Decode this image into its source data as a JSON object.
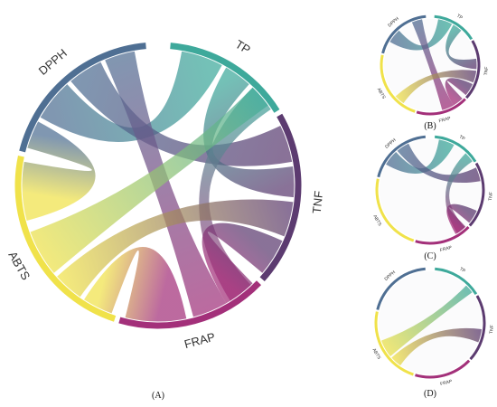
{
  "colors": {
    "DPPH": "#4f6f93",
    "TP": "#3ea99b",
    "TNF": "#5c3b70",
    "FRAP": "#a3307a",
    "ABTS": "#f0e24a"
  },
  "panels": [
    {
      "label": "(A)",
      "segments": [
        {
          "name": "TP",
          "start": 5,
          "end": 58
        },
        {
          "name": "TNF",
          "start": 60,
          "end": 132
        },
        {
          "name": "FRAP",
          "start": 134,
          "end": 196
        },
        {
          "name": "ABTS",
          "start": 198,
          "end": 282
        },
        {
          "name": "DPPH",
          "start": 284,
          "end": 355
        }
      ],
      "links": [
        {
          "from": "DPPH",
          "to": "TP",
          "s1": 300,
          "e1": 318,
          "s2": 10,
          "e2": 28
        },
        {
          "from": "DPPH",
          "to": "TNF",
          "s1": 320,
          "e1": 335,
          "s2": 64,
          "e2": 80
        },
        {
          "from": "DPPH",
          "to": "FRAP",
          "s1": 337,
          "e1": 350,
          "s2": 150,
          "e2": 165
        },
        {
          "from": "DPPH",
          "to": "ABTS",
          "s1": 286,
          "e1": 298,
          "s2": 255,
          "e2": 280
        },
        {
          "from": "TP",
          "to": "TNF",
          "s1": 30,
          "e1": 42,
          "s2": 82,
          "e2": 95
        },
        {
          "from": "TP",
          "to": "FRAP",
          "s1": 44,
          "e1": 56,
          "s2": 137,
          "e2": 148
        },
        {
          "from": "ABTS",
          "to": "TP",
          "s1": 230,
          "e1": 250,
          "s2": 44,
          "e2": 54
        },
        {
          "from": "ABTS",
          "to": "TNF",
          "s1": 215,
          "e1": 228,
          "s2": 97,
          "e2": 112
        },
        {
          "from": "ABTS",
          "to": "FRAP",
          "s1": 200,
          "e1": 213,
          "s2": 168,
          "e2": 194
        },
        {
          "from": "TNF",
          "to": "FRAP",
          "s1": 114,
          "e1": 130,
          "s2": 136,
          "e2": 150
        }
      ]
    },
    {
      "label": "(B)",
      "segments": [
        {
          "name": "TP",
          "start": 5,
          "end": 58
        },
        {
          "name": "TNF",
          "start": 60,
          "end": 132
        },
        {
          "name": "FRAP",
          "start": 134,
          "end": 196
        },
        {
          "name": "ABTS",
          "start": 198,
          "end": 282
        },
        {
          "name": "DPPH",
          "start": 284,
          "end": 355
        }
      ],
      "links": [
        {
          "from": "DPPH",
          "to": "TP",
          "s1": 300,
          "e1": 318,
          "s2": 10,
          "e2": 28
        },
        {
          "from": "DPPH",
          "to": "FRAP",
          "s1": 337,
          "e1": 350,
          "s2": 150,
          "e2": 165
        },
        {
          "from": "TP",
          "to": "TNF",
          "s1": 30,
          "e1": 42,
          "s2": 82,
          "e2": 95
        },
        {
          "from": "ABTS",
          "to": "TNF",
          "s1": 215,
          "e1": 228,
          "s2": 97,
          "e2": 112
        },
        {
          "from": "TNF",
          "to": "FRAP",
          "s1": 114,
          "e1": 130,
          "s2": 136,
          "e2": 150
        }
      ]
    },
    {
      "label": "(C)",
      "segments": [
        {
          "name": "TP",
          "start": 5,
          "end": 58
        },
        {
          "name": "TNF",
          "start": 60,
          "end": 132
        },
        {
          "name": "FRAP",
          "start": 134,
          "end": 196
        },
        {
          "name": "ABTS",
          "start": 198,
          "end": 282
        },
        {
          "name": "DPPH",
          "start": 284,
          "end": 355
        }
      ],
      "links": [
        {
          "from": "DPPH",
          "to": "TP",
          "s1": 300,
          "e1": 318,
          "s2": 10,
          "e2": 28
        },
        {
          "from": "DPPH",
          "to": "TNF",
          "s1": 320,
          "e1": 335,
          "s2": 64,
          "e2": 80
        },
        {
          "from": "TP",
          "to": "FRAP",
          "s1": 44,
          "e1": 56,
          "s2": 137,
          "e2": 148
        },
        {
          "from": "TNF",
          "to": "FRAP",
          "s1": 114,
          "e1": 130,
          "s2": 136,
          "e2": 150
        }
      ]
    },
    {
      "label": "(D)",
      "segments": [
        {
          "name": "TP",
          "start": 5,
          "end": 58
        },
        {
          "name": "TNF",
          "start": 60,
          "end": 132
        },
        {
          "name": "FRAP",
          "start": 134,
          "end": 196
        },
        {
          "name": "ABTS",
          "start": 198,
          "end": 282
        },
        {
          "name": "DPPH",
          "start": 284,
          "end": 355
        }
      ],
      "links": [
        {
          "from": "ABTS",
          "to": "TP",
          "s1": 230,
          "e1": 250,
          "s2": 44,
          "e2": 54
        },
        {
          "from": "ABTS",
          "to": "TNF",
          "s1": 215,
          "e1": 228,
          "s2": 97,
          "e2": 112
        }
      ]
    }
  ]
}
